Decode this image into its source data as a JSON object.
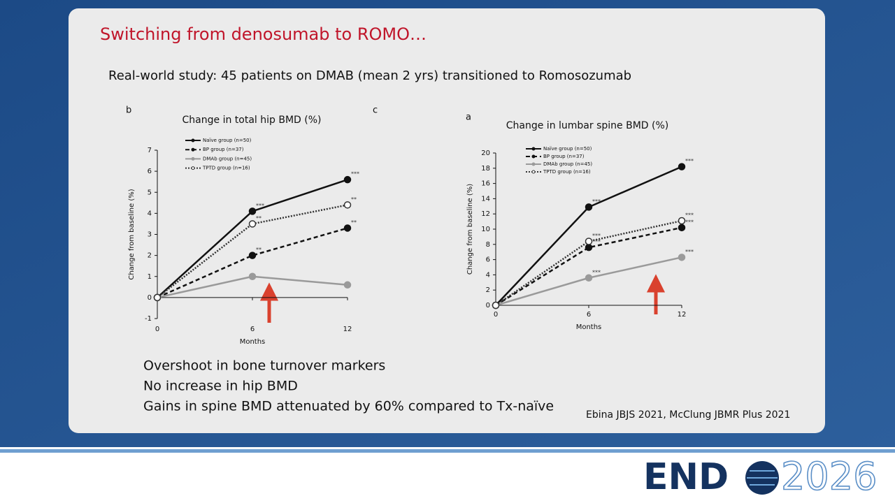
{
  "slide_title": "Switching from denosumab to ROMO…",
  "subtitle": "Real-world study:  45 patients on DMAB (mean 2 yrs) transitioned to Romosozumab",
  "bullets": [
    "Overshoot in bone turnover markers",
    "No increase in hip BMD",
    "Gains in spine BMD attenuated by 60% compared to Tx-naïve"
  ],
  "citation": "Ebina JBJS 2021, McClung JBMR Plus 2021",
  "logo": {
    "prefix": "END",
    "year": "2026"
  },
  "chart_data": [
    {
      "type": "line",
      "panel_label": "b",
      "panel_label_right": "c",
      "title": "Change in total hip BMD (%)",
      "xlabel": "Months",
      "ylabel": "Change from baseline (%)",
      "x": [
        0,
        6,
        12
      ],
      "xlim": [
        0,
        12
      ],
      "xticks": [
        0,
        6,
        12
      ],
      "ylim": [
        -1,
        7
      ],
      "yticks": [
        -1,
        0,
        1,
        2,
        3,
        4,
        5,
        6,
        7
      ],
      "legend": "upper left",
      "series": [
        {
          "name": "Naïve group (n=50)",
          "color": "#111111",
          "dash": "solid",
          "marker": "filled",
          "values": [
            0,
            4.1,
            5.6
          ],
          "significance": [
            null,
            "***",
            "***"
          ]
        },
        {
          "name": "BP group (n=37)",
          "color": "#111111",
          "dash": "dashed",
          "marker": "filled",
          "values": [
            0,
            2.0,
            3.3
          ],
          "significance": [
            null,
            "**",
            "**"
          ]
        },
        {
          "name": "DMAb group (n=45)",
          "color": "#9a9a9a",
          "dash": "solid",
          "marker": "filled",
          "values": [
            0,
            1.0,
            0.6
          ],
          "significance": [
            null,
            null,
            null
          ]
        },
        {
          "name": "TPTD group (n=16)",
          "color": "#333333",
          "dash": "dotted",
          "marker": "open",
          "values": [
            0,
            3.5,
            4.4
          ],
          "significance": [
            null,
            "**",
            "**"
          ]
        }
      ]
    },
    {
      "type": "line",
      "panel_label": "a",
      "title": "Change in lumbar spine BMD (%)",
      "xlabel": "Months",
      "ylabel": "Change from baseline (%)",
      "x": [
        0,
        6,
        12
      ],
      "xlim": [
        0,
        12
      ],
      "xticks": [
        0,
        6,
        12
      ],
      "ylim": [
        0,
        20
      ],
      "yticks": [
        0,
        2,
        4,
        6,
        8,
        10,
        12,
        14,
        16,
        18,
        20
      ],
      "legend": "upper left",
      "series": [
        {
          "name": "Naïve group (n=50)",
          "color": "#111111",
          "dash": "solid",
          "marker": "filled",
          "values": [
            0,
            12.9,
            18.2
          ],
          "significance": [
            null,
            "***",
            "***"
          ]
        },
        {
          "name": "BP group (n=37)",
          "color": "#111111",
          "dash": "dashed",
          "marker": "filled",
          "values": [
            0,
            7.6,
            10.2
          ],
          "significance": [
            null,
            "***",
            "***"
          ]
        },
        {
          "name": "DMAb group (n=45)",
          "color": "#9a9a9a",
          "dash": "solid",
          "marker": "filled",
          "values": [
            0,
            3.6,
            6.3
          ],
          "significance": [
            null,
            "***",
            "***"
          ]
        },
        {
          "name": "TPTD group (n=16)",
          "color": "#333333",
          "dash": "dotted",
          "marker": "open",
          "values": [
            0,
            8.4,
            11.1
          ],
          "significance": [
            null,
            "***",
            "***"
          ]
        }
      ]
    }
  ]
}
